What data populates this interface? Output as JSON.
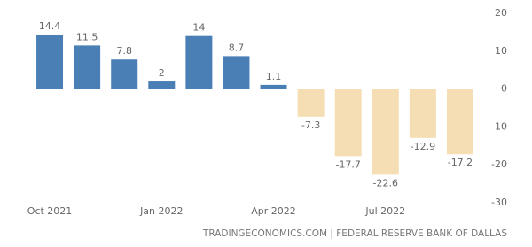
{
  "chart_data": {
    "type": "bar",
    "categories": [
      "Oct 2021",
      null,
      null,
      "Jan 2022",
      null,
      null,
      "Apr 2022",
      null,
      null,
      "Jul 2022",
      null,
      null
    ],
    "values": [
      14.4,
      11.5,
      7.8,
      2,
      14,
      8.7,
      1.1,
      -7.3,
      -17.7,
      -22.6,
      -12.9,
      -17.2
    ],
    "color_positive": "#4a7fb5",
    "color_negative": "#f5deb3",
    "ylim": [
      -30,
      20
    ],
    "yticks": [
      20,
      10,
      0,
      -10,
      -20,
      -30
    ],
    "grid": false,
    "source": "TRADINGECONOMICS.COM | FEDERAL RESERVE BANK OF DALLAS"
  }
}
